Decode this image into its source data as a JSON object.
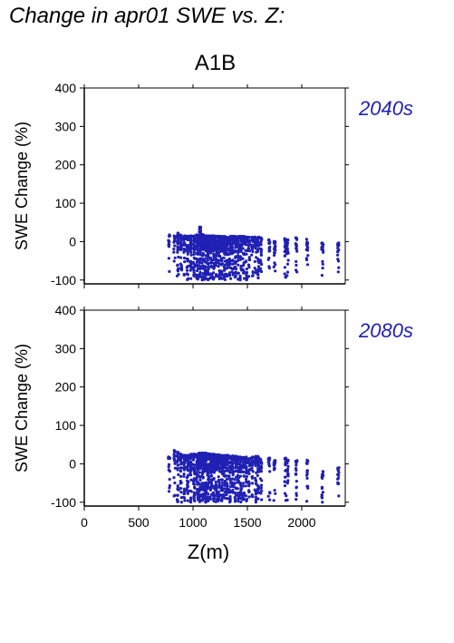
{
  "figure_title": "Change in apr01 SWE vs. Z:",
  "scenario": "A1B",
  "colors": {
    "points": "#2020b4",
    "period_label": "#2020b4",
    "axis": "#000000"
  },
  "chart_data": [
    {
      "type": "scatter",
      "period": "2040s",
      "ylabel": "SWE Change (%)",
      "xlim": [
        0,
        2400
      ],
      "ylim": [
        -110,
        400
      ],
      "xticks": [
        0,
        500,
        1000,
        1500,
        2000
      ],
      "yticks": [
        -100,
        0,
        100,
        200,
        300,
        400
      ],
      "x_tick_labels_visible": false,
      "columns": [
        {
          "x": 780,
          "ymin": -98,
          "ymax": 18,
          "n": 14
        },
        {
          "x": 830,
          "ymin": -95,
          "ymax": 15,
          "n": 12
        },
        {
          "x": 860,
          "ymin": -100,
          "ymax": 22,
          "n": 30
        },
        {
          "x": 890,
          "ymin": -100,
          "ymax": 18,
          "n": 30
        },
        {
          "x": 920,
          "ymin": -100,
          "ymax": 15,
          "n": 34
        },
        {
          "x": 950,
          "ymin": -100,
          "ymax": 14,
          "n": 36
        },
        {
          "x": 980,
          "ymin": -100,
          "ymax": 15,
          "n": 40
        },
        {
          "x": 1010,
          "ymin": -100,
          "ymax": 15,
          "n": 45
        },
        {
          "x": 1040,
          "ymin": -100,
          "ymax": 18,
          "n": 50
        },
        {
          "x": 1065,
          "ymin": -100,
          "ymax": 38,
          "n": 55
        },
        {
          "x": 1090,
          "ymin": -100,
          "ymax": 18,
          "n": 60
        },
        {
          "x": 1115,
          "ymin": -100,
          "ymax": 16,
          "n": 60
        },
        {
          "x": 1140,
          "ymin": -100,
          "ymax": 15,
          "n": 55
        },
        {
          "x": 1165,
          "ymin": -100,
          "ymax": 15,
          "n": 55
        },
        {
          "x": 1190,
          "ymin": -100,
          "ymax": 15,
          "n": 50
        },
        {
          "x": 1215,
          "ymin": -100,
          "ymax": 14,
          "n": 50
        },
        {
          "x": 1240,
          "ymin": -100,
          "ymax": 14,
          "n": 48
        },
        {
          "x": 1265,
          "ymin": -100,
          "ymax": 14,
          "n": 45
        },
        {
          "x": 1290,
          "ymin": -100,
          "ymax": 14,
          "n": 44
        },
        {
          "x": 1315,
          "ymin": -100,
          "ymax": 14,
          "n": 42
        },
        {
          "x": 1340,
          "ymin": -100,
          "ymax": 14,
          "n": 40
        },
        {
          "x": 1365,
          "ymin": -100,
          "ymax": 14,
          "n": 40
        },
        {
          "x": 1390,
          "ymin": -100,
          "ymax": 14,
          "n": 38
        },
        {
          "x": 1415,
          "ymin": -100,
          "ymax": 14,
          "n": 36
        },
        {
          "x": 1440,
          "ymin": -100,
          "ymax": 14,
          "n": 34
        },
        {
          "x": 1465,
          "ymin": -100,
          "ymax": 14,
          "n": 32
        },
        {
          "x": 1490,
          "ymin": -100,
          "ymax": 12,
          "n": 26
        },
        {
          "x": 1515,
          "ymin": -100,
          "ymax": 12,
          "n": 22
        },
        {
          "x": 1545,
          "ymin": -100,
          "ymax": 12,
          "n": 24
        },
        {
          "x": 1575,
          "ymin": -100,
          "ymax": 12,
          "n": 26
        },
        {
          "x": 1600,
          "ymin": -100,
          "ymax": 12,
          "n": 28
        },
        {
          "x": 1625,
          "ymin": -100,
          "ymax": 10,
          "n": 20
        },
        {
          "x": 1700,
          "ymin": -90,
          "ymax": 5,
          "n": 16
        },
        {
          "x": 1750,
          "ymin": -95,
          "ymax": 0,
          "n": 18
        },
        {
          "x": 1850,
          "ymin": -98,
          "ymax": 8,
          "n": 22
        },
        {
          "x": 1870,
          "ymin": -100,
          "ymax": 5,
          "n": 18
        },
        {
          "x": 1950,
          "ymin": -80,
          "ymax": 10,
          "n": 16
        },
        {
          "x": 2050,
          "ymin": -70,
          "ymax": 8,
          "n": 16
        },
        {
          "x": 2190,
          "ymin": -88,
          "ymax": -3,
          "n": 18
        },
        {
          "x": 2335,
          "ymin": -80,
          "ymax": -3,
          "n": 14
        }
      ]
    },
    {
      "type": "scatter",
      "period": "2080s",
      "ylabel": "SWE Change (%)",
      "xlabel": "Z(m)",
      "xlim": [
        0,
        2400
      ],
      "ylim": [
        -110,
        400
      ],
      "xticks": [
        0,
        500,
        1000,
        1500,
        2000
      ],
      "yticks": [
        -100,
        0,
        100,
        200,
        300,
        400
      ],
      "x_tick_labels_visible": true,
      "columns": [
        {
          "x": 780,
          "ymin": -100,
          "ymax": 18,
          "n": 14
        },
        {
          "x": 830,
          "ymin": -98,
          "ymax": 35,
          "n": 16
        },
        {
          "x": 860,
          "ymin": -100,
          "ymax": 30,
          "n": 30
        },
        {
          "x": 890,
          "ymin": -100,
          "ymax": 25,
          "n": 32
        },
        {
          "x": 920,
          "ymin": -100,
          "ymax": 22,
          "n": 34
        },
        {
          "x": 950,
          "ymin": -100,
          "ymax": 22,
          "n": 36
        },
        {
          "x": 980,
          "ymin": -100,
          "ymax": 25,
          "n": 40
        },
        {
          "x": 1010,
          "ymin": -100,
          "ymax": 25,
          "n": 45
        },
        {
          "x": 1040,
          "ymin": -100,
          "ymax": 25,
          "n": 50
        },
        {
          "x": 1065,
          "ymin": -100,
          "ymax": 28,
          "n": 55
        },
        {
          "x": 1090,
          "ymin": -100,
          "ymax": 28,
          "n": 60
        },
        {
          "x": 1115,
          "ymin": -100,
          "ymax": 28,
          "n": 60
        },
        {
          "x": 1140,
          "ymin": -100,
          "ymax": 26,
          "n": 55
        },
        {
          "x": 1165,
          "ymin": -100,
          "ymax": 25,
          "n": 55
        },
        {
          "x": 1190,
          "ymin": -100,
          "ymax": 25,
          "n": 50
        },
        {
          "x": 1215,
          "ymin": -100,
          "ymax": 24,
          "n": 50
        },
        {
          "x": 1240,
          "ymin": -100,
          "ymax": 24,
          "n": 48
        },
        {
          "x": 1265,
          "ymin": -100,
          "ymax": 22,
          "n": 45
        },
        {
          "x": 1290,
          "ymin": -100,
          "ymax": 22,
          "n": 44
        },
        {
          "x": 1315,
          "ymin": -100,
          "ymax": 22,
          "n": 42
        },
        {
          "x": 1340,
          "ymin": -100,
          "ymax": 20,
          "n": 40
        },
        {
          "x": 1365,
          "ymin": -100,
          "ymax": 20,
          "n": 40
        },
        {
          "x": 1390,
          "ymin": -100,
          "ymax": 20,
          "n": 38
        },
        {
          "x": 1415,
          "ymin": -100,
          "ymax": 18,
          "n": 36
        },
        {
          "x": 1440,
          "ymin": -100,
          "ymax": 18,
          "n": 34
        },
        {
          "x": 1465,
          "ymin": -100,
          "ymax": 18,
          "n": 32
        },
        {
          "x": 1490,
          "ymin": -100,
          "ymax": 18,
          "n": 26
        },
        {
          "x": 1515,
          "ymin": -100,
          "ymax": 15,
          "n": 22
        },
        {
          "x": 1545,
          "ymin": -100,
          "ymax": 18,
          "n": 24
        },
        {
          "x": 1575,
          "ymin": -100,
          "ymax": 20,
          "n": 26
        },
        {
          "x": 1600,
          "ymin": -100,
          "ymax": 20,
          "n": 28
        },
        {
          "x": 1625,
          "ymin": -100,
          "ymax": 18,
          "n": 20
        },
        {
          "x": 1700,
          "ymin": -100,
          "ymax": 15,
          "n": 16
        },
        {
          "x": 1750,
          "ymin": -100,
          "ymax": 10,
          "n": 18
        },
        {
          "x": 1850,
          "ymin": -100,
          "ymax": 15,
          "n": 22
        },
        {
          "x": 1870,
          "ymin": -100,
          "ymax": 12,
          "n": 18
        },
        {
          "x": 1950,
          "ymin": -100,
          "ymax": 15,
          "n": 16
        },
        {
          "x": 2050,
          "ymin": -100,
          "ymax": 10,
          "n": 16
        },
        {
          "x": 2190,
          "ymin": -100,
          "ymax": -20,
          "n": 18
        },
        {
          "x": 2335,
          "ymin": -100,
          "ymax": -10,
          "n": 14
        }
      ]
    }
  ]
}
